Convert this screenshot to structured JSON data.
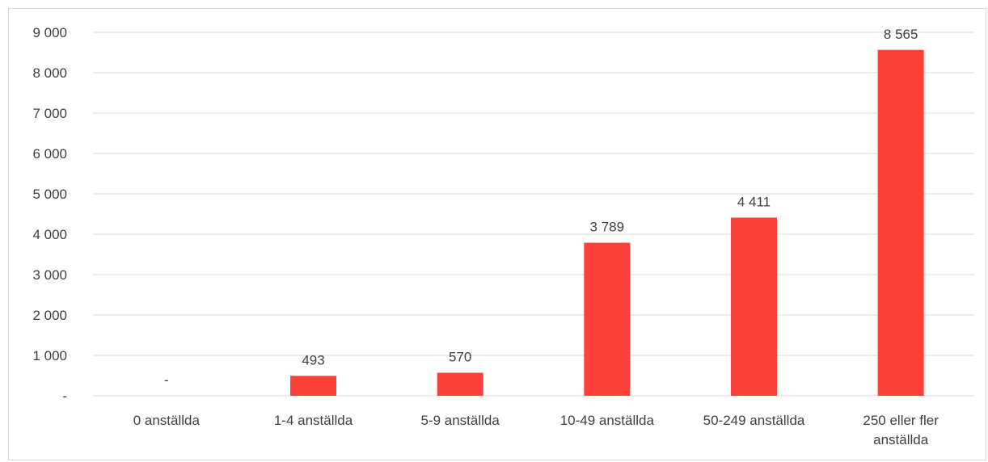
{
  "chart_data": {
    "type": "bar",
    "title": "",
    "xlabel": "",
    "ylabel": "",
    "ylim": [
      0,
      9000
    ],
    "yticks": [
      0,
      1000,
      2000,
      3000,
      4000,
      5000,
      6000,
      7000,
      8000,
      9000
    ],
    "ytick_labels": [
      "-",
      "1 000",
      "2 000",
      "3 000",
      "4 000",
      "5 000",
      "6 000",
      "7 000",
      "8 000",
      "9 000"
    ],
    "grid": true,
    "legend": "none",
    "bar_color": "#fc403a",
    "categories": [
      [
        "0 anställda"
      ],
      [
        "1-4 anställda"
      ],
      [
        "5-9 anställda"
      ],
      [
        "10-49 anställda"
      ],
      [
        "50-249 anställda"
      ],
      [
        "250 eller fler",
        "anställda"
      ]
    ],
    "values": [
      0,
      493,
      570,
      3789,
      4411,
      8565
    ],
    "data_labels": [
      "-",
      "493",
      "570",
      "3 789",
      "4 411",
      "8 565"
    ]
  }
}
